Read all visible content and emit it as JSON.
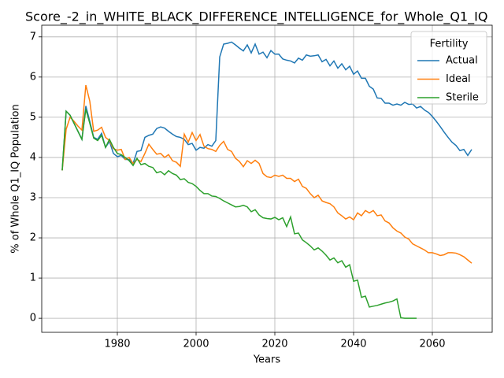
{
  "chart_data": {
    "type": "line",
    "title": "Score_-2_in_WHITE_BLACK_DIFFERENCE_INTELLIGENCE_for_Whole_Q1_IQ",
    "xlabel": "Years",
    "ylabel": "% of Whole Q1_IQ Population",
    "legend_title": "Fertility",
    "legend_loc": "upper right",
    "grid": true,
    "xlim": [
      1960.8,
      2075.2
    ],
    "xticks": [
      1980,
      2000,
      2020,
      2040,
      2060
    ],
    "ylim": [
      -0.35,
      7.29
    ],
    "yticks": [
      0,
      1,
      2,
      3,
      4,
      5,
      6,
      7
    ],
    "x": [
      1966,
      1967,
      1968,
      1969,
      1970,
      1971,
      1972,
      1973,
      1974,
      1975,
      1976,
      1977,
      1978,
      1979,
      1980,
      1981,
      1982,
      1983,
      1984,
      1985,
      1986,
      1987,
      1988,
      1989,
      1990,
      1991,
      1992,
      1993,
      1994,
      1995,
      1996,
      1997,
      1998,
      1999,
      2000,
      2001,
      2002,
      2003,
      2004,
      2005,
      2006,
      2007,
      2008,
      2009,
      2010,
      2011,
      2012,
      2013,
      2014,
      2015,
      2016,
      2017,
      2018,
      2019,
      2020,
      2021,
      2022,
      2023,
      2024,
      2025,
      2026,
      2027,
      2028,
      2029,
      2030,
      2031,
      2032,
      2033,
      2034,
      2035,
      2036,
      2037,
      2038,
      2039,
      2040,
      2041,
      2042,
      2043,
      2044,
      2045,
      2046,
      2047,
      2048,
      2049,
      2050,
      2051,
      2052,
      2053,
      2054,
      2055,
      2056,
      2057,
      2058,
      2059,
      2060,
      2061,
      2062,
      2063,
      2064,
      2065,
      2066,
      2067,
      2068,
      2069,
      2070
    ],
    "series": [
      {
        "name": "Actual",
        "color": "#1f77b4",
        "values": [
          3.68,
          5.15,
          5.05,
          4.85,
          4.65,
          4.45,
          5.28,
          4.9,
          4.5,
          4.45,
          4.6,
          4.25,
          4.4,
          4.1,
          4.02,
          4.05,
          3.95,
          3.95,
          3.85,
          4.15,
          4.17,
          4.5,
          4.55,
          4.58,
          4.72,
          4.76,
          4.73,
          4.65,
          4.58,
          4.52,
          4.5,
          4.45,
          4.32,
          4.35,
          4.18,
          4.25,
          4.23,
          4.32,
          4.28,
          4.42,
          6.5,
          6.82,
          6.84,
          6.87,
          6.8,
          6.72,
          6.65,
          6.8,
          6.6,
          6.82,
          6.57,
          6.62,
          6.48,
          6.66,
          6.57,
          6.57,
          6.45,
          6.42,
          6.4,
          6.35,
          6.47,
          6.42,
          6.55,
          6.52,
          6.53,
          6.55,
          6.38,
          6.44,
          6.28,
          6.4,
          6.22,
          6.33,
          6.18,
          6.27,
          6.07,
          6.15,
          5.97,
          5.97,
          5.77,
          5.7,
          5.48,
          5.47,
          5.35,
          5.35,
          5.3,
          5.33,
          5.3,
          5.37,
          5.32,
          5.33,
          5.23,
          5.27,
          5.18,
          5.12,
          5.02,
          4.9,
          4.77,
          4.63,
          4.5,
          4.38,
          4.3,
          4.17,
          4.2,
          4.05,
          4.2
        ]
      },
      {
        "name": "Ideal",
        "color": "#ff7f0e",
        "values": [
          3.68,
          4.7,
          5.0,
          4.9,
          4.78,
          4.68,
          5.8,
          5.4,
          4.65,
          4.68,
          4.75,
          4.5,
          4.42,
          4.22,
          4.18,
          4.2,
          3.95,
          4.0,
          3.85,
          3.95,
          3.9,
          4.1,
          4.33,
          4.2,
          4.08,
          4.1,
          4.0,
          4.07,
          3.92,
          3.88,
          3.78,
          4.58,
          4.38,
          4.62,
          4.42,
          4.57,
          4.28,
          4.22,
          4.2,
          4.15,
          4.3,
          4.4,
          4.2,
          4.15,
          3.98,
          3.9,
          3.77,
          3.92,
          3.85,
          3.93,
          3.85,
          3.6,
          3.52,
          3.5,
          3.56,
          3.53,
          3.56,
          3.48,
          3.48,
          3.4,
          3.46,
          3.28,
          3.23,
          3.1,
          3.0,
          3.06,
          2.92,
          2.88,
          2.85,
          2.77,
          2.62,
          2.55,
          2.47,
          2.52,
          2.45,
          2.62,
          2.55,
          2.68,
          2.62,
          2.68,
          2.55,
          2.57,
          2.42,
          2.37,
          2.25,
          2.17,
          2.12,
          2.02,
          1.97,
          1.85,
          1.8,
          1.75,
          1.7,
          1.63,
          1.63,
          1.6,
          1.56,
          1.58,
          1.63,
          1.63,
          1.62,
          1.58,
          1.53,
          1.45,
          1.37
        ]
      },
      {
        "name": "Sterile",
        "color": "#2ca02c",
        "values": [
          3.68,
          5.15,
          5.05,
          4.85,
          4.65,
          4.45,
          5.2,
          4.85,
          4.48,
          4.42,
          4.55,
          4.25,
          4.45,
          4.25,
          4.1,
          4.07,
          4.0,
          3.92,
          3.8,
          3.98,
          3.82,
          3.85,
          3.78,
          3.75,
          3.62,
          3.65,
          3.57,
          3.67,
          3.6,
          3.56,
          3.45,
          3.47,
          3.38,
          3.35,
          3.28,
          3.18,
          3.1,
          3.1,
          3.04,
          3.03,
          2.98,
          2.92,
          2.87,
          2.82,
          2.77,
          2.78,
          2.81,
          2.77,
          2.65,
          2.7,
          2.57,
          2.5,
          2.48,
          2.47,
          2.51,
          2.45,
          2.5,
          2.28,
          2.52,
          2.1,
          2.12,
          1.95,
          1.88,
          1.8,
          1.7,
          1.75,
          1.67,
          1.57,
          1.45,
          1.5,
          1.38,
          1.43,
          1.27,
          1.33,
          0.92,
          0.95,
          0.52,
          0.55,
          0.28,
          0.3,
          0.32,
          0.35,
          0.38,
          0.4,
          0.43,
          0.48,
          0.01,
          0,
          0,
          0,
          0,
          null,
          null,
          null,
          null,
          null,
          null,
          null,
          null,
          null,
          null,
          null,
          null,
          null,
          null
        ]
      }
    ]
  }
}
